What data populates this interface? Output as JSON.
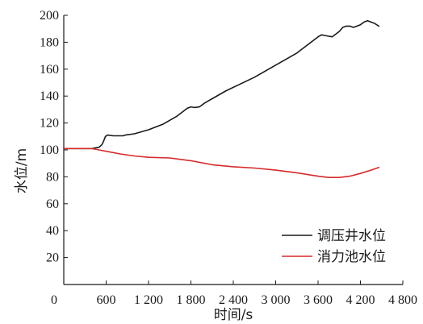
{
  "chart_data": {
    "type": "line",
    "xlabel": "时间/s",
    "ylabel": "水位/m",
    "xlim": [
      0,
      4800
    ],
    "ylim": [
      0,
      200
    ],
    "x_ticks": [
      0,
      600,
      1200,
      1800,
      2400,
      3000,
      3600,
      4200,
      4800
    ],
    "x_tick_labels": [
      "0",
      "600",
      "1 200",
      "1 800",
      "2 400",
      "3 000",
      "3 600",
      "4 200",
      "4 800"
    ],
    "y_ticks": [
      20,
      40,
      60,
      80,
      100,
      120,
      140,
      160,
      180,
      200
    ],
    "y_tick_labels": [
      "20",
      "40",
      "60",
      "80",
      "100",
      "120",
      "140",
      "160",
      "180",
      "200"
    ],
    "grid": false,
    "legend_position": "bottom-right",
    "series": [
      {
        "name": "调压井水位",
        "color": "#1a1a1a",
        "x": [
          0,
          200,
          400,
          500,
          540,
          560,
          590,
          620,
          700,
          840,
          870,
          1000,
          1200,
          1400,
          1600,
          1750,
          1800,
          1850,
          1920,
          2000,
          2100,
          2300,
          2500,
          2700,
          3000,
          3300,
          3500,
          3600,
          3650,
          3700,
          3800,
          3900,
          3950,
          4000,
          4050,
          4100,
          4200,
          4250,
          4300,
          4400,
          4460
        ],
        "y": [
          101,
          101,
          101,
          102,
          104,
          106,
          110,
          111,
          110.5,
          110.5,
          111,
          112,
          115,
          119,
          125,
          131,
          132,
          131.5,
          132,
          135,
          138,
          144,
          149,
          154,
          163,
          172,
          180,
          184,
          185.5,
          185,
          184,
          188,
          191,
          192,
          192,
          191,
          193,
          195,
          196,
          194,
          192
        ]
      },
      {
        "name": "消力池水位",
        "color": "#d62a2a",
        "x": [
          0,
          200,
          400,
          500,
          600,
          800,
          1000,
          1200,
          1500,
          1800,
          2100,
          2400,
          2700,
          3000,
          3300,
          3600,
          3750,
          3900,
          4050,
          4200,
          4350,
          4460
        ],
        "y": [
          101,
          101,
          101,
          100,
          99,
          97,
          95.5,
          94.5,
          94,
          92,
          89,
          87.5,
          86.5,
          85,
          83,
          80.5,
          79.5,
          79.5,
          80.5,
          82.5,
          85,
          87
        ]
      }
    ]
  }
}
